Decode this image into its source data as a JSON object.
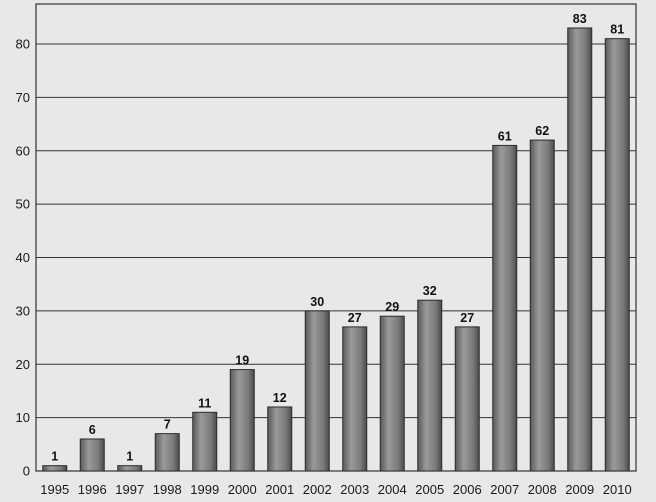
{
  "chart_data": {
    "type": "bar",
    "title": "",
    "xlabel": "",
    "ylabel": "",
    "categories": [
      "1995",
      "1996",
      "1997",
      "1998",
      "1999",
      "2000",
      "2001",
      "2002",
      "2003",
      "2004",
      "2005",
      "2006",
      "2007",
      "2008",
      "2009",
      "2010"
    ],
    "values": [
      1,
      6,
      1,
      7,
      11,
      19,
      12,
      30,
      27,
      29,
      32,
      27,
      61,
      62,
      83,
      81
    ],
    "ylim": [
      0,
      85
    ],
    "yticks": [
      0,
      10,
      20,
      30,
      40,
      50,
      60,
      70,
      80
    ],
    "grid": true,
    "legend": "none",
    "colors": {
      "bar_fill": "#7d7d7d",
      "bar_edge": "#2b2b2b",
      "grid": "#333333",
      "background": "#e8e8e8"
    }
  }
}
